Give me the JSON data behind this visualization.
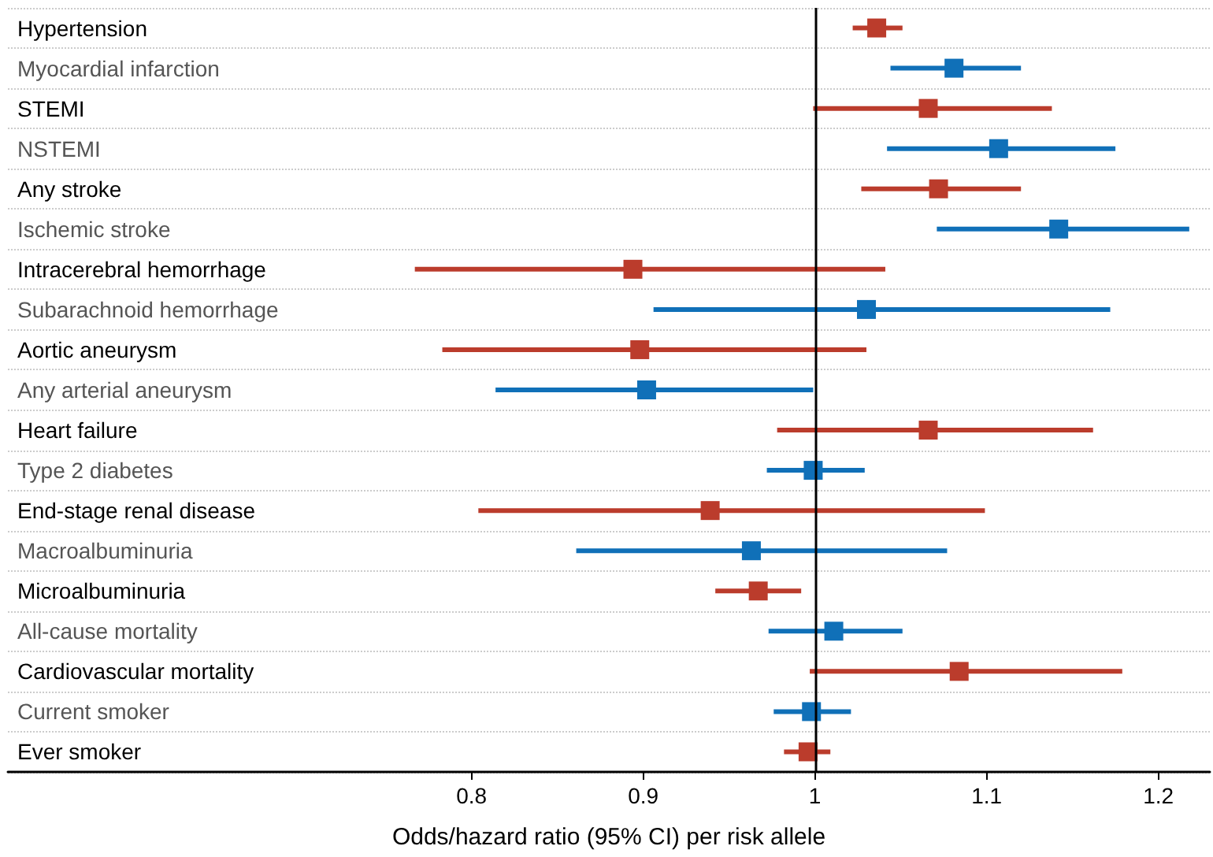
{
  "chart_data": {
    "type": "scatter",
    "orientation": "horizontal",
    "marker": "square",
    "grid": "y",
    "xlabel": "Odds/hazard ratio (95% CI) per risk allele",
    "categories": [
      "Hypertension",
      "Myocardial infarction",
      "STEMI",
      "NSTEMI",
      "Any stroke",
      "Ischemic stroke",
      "Intracerebral hemorrhage",
      "Subarachnoid hemorrhage",
      "Aortic aneurysm",
      "Any arterial aneurysm",
      "Heart failure",
      "Type 2 diabetes",
      "End-stage renal disease",
      "Macroalbuminuria",
      "Microalbuminuria",
      "All-cause mortality",
      "Cardiovascular mortality",
      "Current smoker",
      "Ever smoker"
    ],
    "xlim": [
      0.53,
      1.23
    ],
    "xticks": [
      0.8,
      0.9,
      1,
      1.1,
      1.2
    ],
    "ref_lines": [
      {
        "axis": "x",
        "value": 1,
        "color": "#000000",
        "line_style": "solid"
      }
    ],
    "series": [
      {
        "color": "#bb3c2c",
        "values": [
          1.036,
          null,
          1.066,
          null,
          1.072,
          null,
          0.894,
          null,
          0.898,
          null,
          1.066,
          null,
          0.939,
          null,
          0.967,
          null,
          1.084,
          null,
          0.996
        ],
        "errors": [
          [
            1.022,
            1.051
          ],
          null,
          [
            0.999,
            1.138
          ],
          null,
          [
            1.027,
            1.12
          ],
          null,
          [
            0.767,
            1.041
          ],
          null,
          [
            0.783,
            1.03
          ],
          null,
          [
            0.978,
            1.162
          ],
          null,
          [
            0.804,
            1.099
          ],
          null,
          [
            0.942,
            0.992
          ],
          null,
          [
            0.997,
            1.179
          ],
          null,
          [
            0.982,
            1.009
          ]
        ]
      },
      {
        "color": "#1070b8",
        "values": [
          null,
          1.081,
          null,
          1.107,
          null,
          1.142,
          null,
          1.03,
          null,
          0.902,
          null,
          0.999,
          null,
          0.963,
          null,
          1.011,
          null,
          0.998,
          null
        ],
        "errors": [
          null,
          [
            1.044,
            1.12
          ],
          null,
          [
            1.042,
            1.175
          ],
          null,
          [
            1.071,
            1.218
          ],
          null,
          [
            0.906,
            1.172
          ],
          null,
          [
            0.814,
            0.999
          ],
          null,
          [
            0.972,
            1.029
          ],
          null,
          [
            0.861,
            1.077
          ],
          null,
          [
            0.973,
            1.051
          ],
          null,
          [
            0.976,
            1.021
          ],
          null
        ]
      }
    ]
  }
}
